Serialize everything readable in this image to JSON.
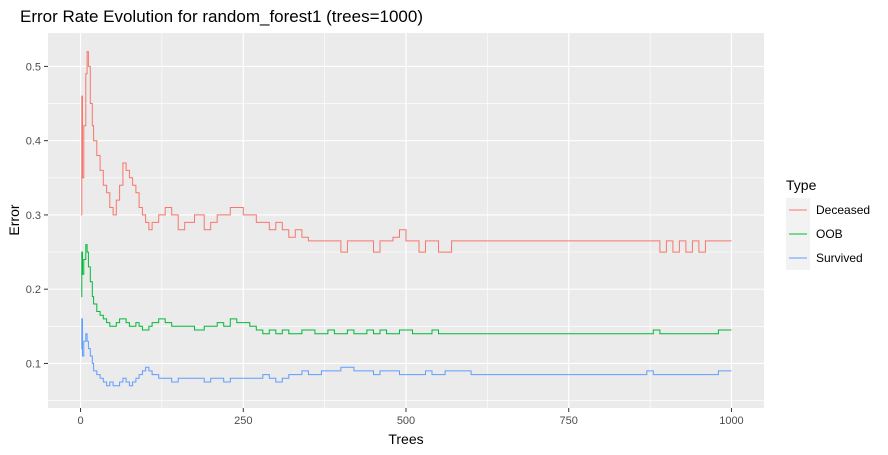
{
  "chart_data": {
    "type": "line",
    "title": "Error Rate Evolution for random_forest1 (trees=1000)",
    "xlabel": "Trees",
    "ylabel": "Error",
    "xlim": [
      -50,
      1050
    ],
    "ylim": [
      0.04,
      0.545
    ],
    "x_ticks": [
      0,
      250,
      500,
      750,
      1000
    ],
    "y_ticks": [
      0.1,
      0.2,
      0.3,
      0.4,
      0.5
    ],
    "x_tick_labels": [
      "0",
      "250",
      "500",
      "750",
      "1000"
    ],
    "y_tick_labels": [
      "0.1",
      "0.2",
      "0.3",
      "0.4",
      "0.5"
    ],
    "grid": true,
    "legend": {
      "title": "Type",
      "placement": "right"
    },
    "series": [
      {
        "name": "Deceased",
        "color": "#F8766D",
        "x": [
          1,
          2,
          3,
          5,
          8,
          10,
          12,
          15,
          18,
          20,
          25,
          30,
          35,
          40,
          45,
          50,
          55,
          60,
          65,
          70,
          75,
          80,
          85,
          90,
          95,
          100,
          105,
          110,
          120,
          130,
          140,
          150,
          160,
          175,
          190,
          200,
          210,
          220,
          230,
          240,
          250,
          260,
          270,
          280,
          290,
          300,
          310,
          320,
          330,
          340,
          350,
          360,
          370,
          380,
          390,
          400,
          410,
          420,
          430,
          440,
          450,
          460,
          470,
          480,
          490,
          500,
          510,
          520,
          530,
          540,
          550,
          560,
          570,
          580,
          600,
          650,
          700,
          750,
          800,
          850,
          880,
          890,
          900,
          910,
          920,
          930,
          940,
          950,
          960,
          980,
          1000
        ],
        "y": [
          0.3,
          0.46,
          0.35,
          0.42,
          0.49,
          0.52,
          0.5,
          0.45,
          0.42,
          0.4,
          0.38,
          0.36,
          0.34,
          0.33,
          0.31,
          0.3,
          0.32,
          0.34,
          0.37,
          0.36,
          0.35,
          0.34,
          0.33,
          0.31,
          0.3,
          0.29,
          0.28,
          0.29,
          0.3,
          0.31,
          0.3,
          0.28,
          0.29,
          0.3,
          0.28,
          0.29,
          0.3,
          0.3,
          0.31,
          0.31,
          0.3,
          0.3,
          0.29,
          0.29,
          0.28,
          0.29,
          0.28,
          0.27,
          0.28,
          0.27,
          0.265,
          0.265,
          0.265,
          0.265,
          0.265,
          0.25,
          0.265,
          0.265,
          0.265,
          0.265,
          0.25,
          0.265,
          0.265,
          0.27,
          0.28,
          0.265,
          0.265,
          0.25,
          0.265,
          0.265,
          0.25,
          0.25,
          0.265,
          0.265,
          0.265,
          0.265,
          0.265,
          0.265,
          0.265,
          0.265,
          0.265,
          0.25,
          0.265,
          0.25,
          0.265,
          0.25,
          0.265,
          0.25,
          0.265,
          0.265,
          0.265
        ]
      },
      {
        "name": "OOB",
        "color": "#00BA38",
        "x": [
          1,
          2,
          3,
          5,
          8,
          10,
          12,
          15,
          18,
          20,
          25,
          30,
          35,
          40,
          45,
          50,
          55,
          60,
          65,
          70,
          75,
          80,
          85,
          90,
          95,
          100,
          105,
          110,
          120,
          130,
          140,
          150,
          160,
          175,
          190,
          200,
          210,
          220,
          230,
          240,
          250,
          260,
          270,
          280,
          290,
          300,
          310,
          320,
          330,
          340,
          350,
          360,
          370,
          380,
          390,
          400,
          410,
          420,
          430,
          440,
          450,
          460,
          470,
          480,
          490,
          500,
          510,
          520,
          530,
          540,
          550,
          560,
          570,
          580,
          600,
          650,
          700,
          750,
          800,
          850,
          880,
          890,
          900,
          910,
          920,
          930,
          940,
          950,
          960,
          980,
          1000
        ],
        "y": [
          0.19,
          0.25,
          0.22,
          0.24,
          0.26,
          0.25,
          0.23,
          0.21,
          0.19,
          0.18,
          0.17,
          0.165,
          0.16,
          0.155,
          0.15,
          0.15,
          0.155,
          0.16,
          0.16,
          0.155,
          0.15,
          0.15,
          0.155,
          0.15,
          0.145,
          0.145,
          0.15,
          0.155,
          0.16,
          0.155,
          0.15,
          0.15,
          0.15,
          0.145,
          0.15,
          0.15,
          0.155,
          0.15,
          0.16,
          0.155,
          0.155,
          0.15,
          0.145,
          0.14,
          0.145,
          0.14,
          0.145,
          0.14,
          0.14,
          0.145,
          0.145,
          0.14,
          0.14,
          0.145,
          0.14,
          0.14,
          0.145,
          0.14,
          0.14,
          0.145,
          0.14,
          0.145,
          0.14,
          0.14,
          0.145,
          0.145,
          0.14,
          0.14,
          0.14,
          0.145,
          0.14,
          0.14,
          0.14,
          0.14,
          0.14,
          0.14,
          0.14,
          0.14,
          0.14,
          0.14,
          0.145,
          0.14,
          0.14,
          0.14,
          0.14,
          0.14,
          0.14,
          0.14,
          0.14,
          0.145,
          0.145
        ]
      },
      {
        "name": "Survived",
        "color": "#619CFF",
        "x": [
          1,
          2,
          3,
          5,
          8,
          10,
          12,
          15,
          18,
          20,
          25,
          30,
          35,
          40,
          45,
          50,
          55,
          60,
          65,
          70,
          75,
          80,
          85,
          90,
          95,
          100,
          105,
          110,
          120,
          130,
          140,
          150,
          160,
          175,
          190,
          200,
          210,
          220,
          230,
          240,
          250,
          260,
          270,
          280,
          290,
          300,
          310,
          320,
          330,
          340,
          350,
          360,
          370,
          380,
          390,
          400,
          410,
          420,
          430,
          440,
          450,
          460,
          470,
          480,
          490,
          500,
          510,
          520,
          530,
          540,
          550,
          560,
          570,
          580,
          600,
          650,
          700,
          750,
          800,
          850,
          870,
          880,
          890,
          900,
          920,
          940,
          960,
          970,
          980,
          1000
        ],
        "y": [
          0.12,
          0.16,
          0.11,
          0.13,
          0.14,
          0.13,
          0.12,
          0.11,
          0.1,
          0.09,
          0.085,
          0.08,
          0.075,
          0.07,
          0.075,
          0.07,
          0.07,
          0.075,
          0.08,
          0.075,
          0.07,
          0.075,
          0.08,
          0.085,
          0.09,
          0.095,
          0.09,
          0.085,
          0.08,
          0.08,
          0.075,
          0.08,
          0.08,
          0.08,
          0.075,
          0.08,
          0.08,
          0.075,
          0.08,
          0.08,
          0.08,
          0.08,
          0.08,
          0.085,
          0.08,
          0.075,
          0.08,
          0.085,
          0.085,
          0.09,
          0.085,
          0.085,
          0.09,
          0.09,
          0.09,
          0.095,
          0.095,
          0.09,
          0.09,
          0.09,
          0.085,
          0.09,
          0.09,
          0.09,
          0.085,
          0.085,
          0.085,
          0.085,
          0.09,
          0.085,
          0.085,
          0.09,
          0.09,
          0.09,
          0.085,
          0.085,
          0.085,
          0.085,
          0.085,
          0.085,
          0.09,
          0.085,
          0.085,
          0.085,
          0.085,
          0.085,
          0.085,
          0.085,
          0.09,
          0.09
        ]
      }
    ]
  }
}
